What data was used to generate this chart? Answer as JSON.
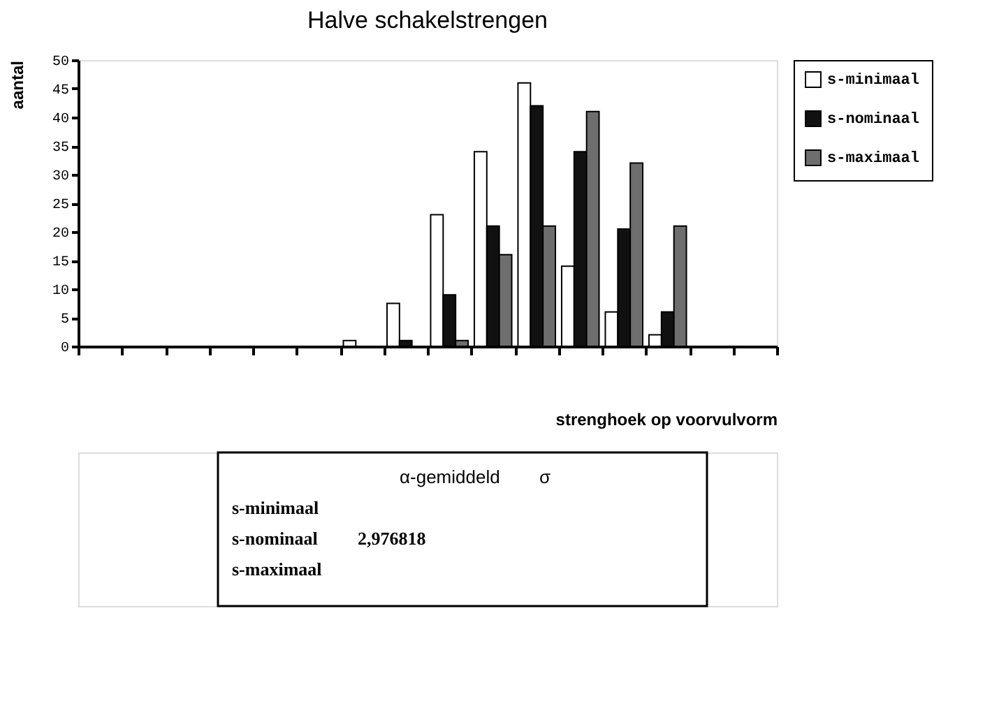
{
  "chart_data": {
    "type": "bar",
    "title": "Halve schakelstrengen",
    "xlabel": "strenghoek op voorvulvorm",
    "ylabel": "aantal",
    "categories": [
      null,
      null,
      null,
      null,
      null,
      null,
      null,
      null,
      null,
      null,
      null,
      null,
      null,
      null,
      null,
      null
    ],
    "series": [
      {
        "name": "s-minimaal",
        "color": "#ffffff",
        "values": [
          0,
          0,
          0,
          0,
          0,
          0,
          1,
          7.5,
          23,
          34,
          46,
          14,
          6,
          2,
          0,
          0
        ]
      },
      {
        "name": "s-nominaal",
        "color": "#111111",
        "values": [
          0,
          0,
          0,
          0,
          0,
          0,
          0,
          1,
          9,
          21,
          42,
          34,
          20.5,
          6,
          0,
          0
        ]
      },
      {
        "name": "s-maximaal",
        "color": "#6e6e6e",
        "values": [
          0,
          0,
          0,
          0,
          0,
          0,
          0,
          0,
          1,
          16,
          21,
          41,
          32,
          21,
          0,
          0
        ]
      }
    ],
    "ylim": [
      0,
      50
    ],
    "yticks": [
      0,
      5,
      10,
      15,
      20,
      25,
      30,
      35,
      40,
      45,
      50
    ],
    "grid": false,
    "legend": "right",
    "tick_labels": "y",
    "annotations": [
      "α-gemiddeld",
      "σ",
      "s-minimaal",
      "s-nominaal",
      "2,976818",
      "s-maximaal"
    ]
  }
}
